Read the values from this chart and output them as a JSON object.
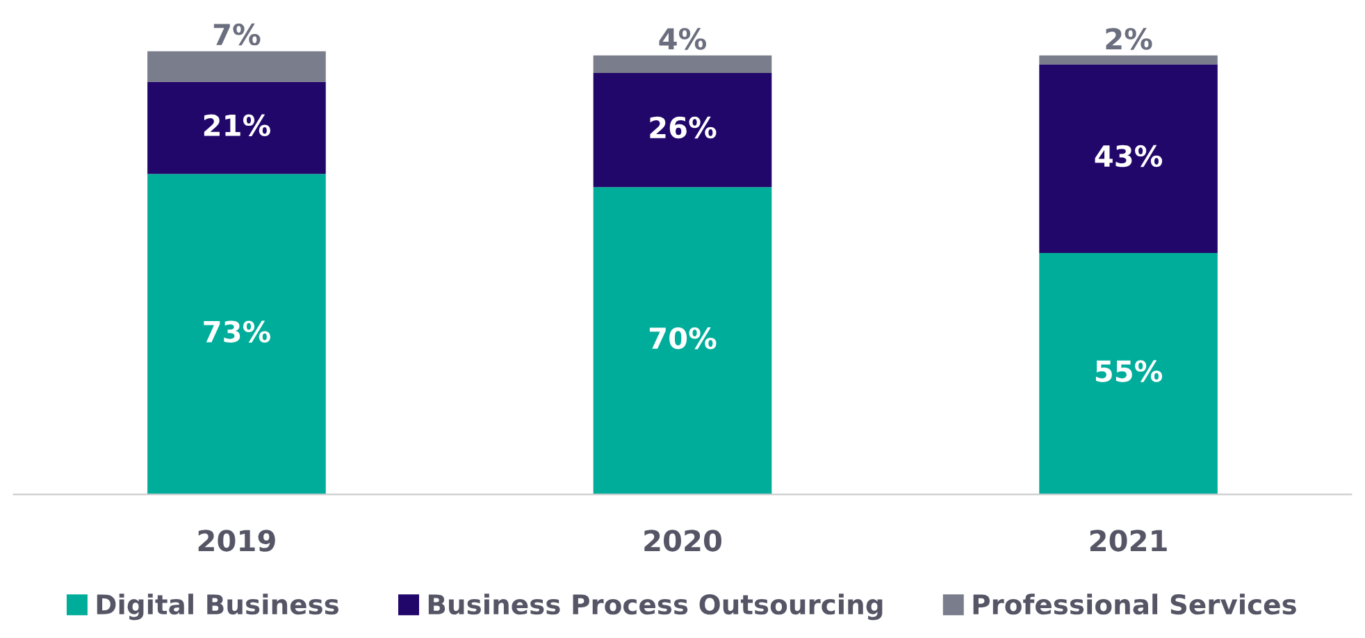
{
  "chart_data": {
    "type": "bar",
    "stacked": true,
    "categories": [
      "2019",
      "2020",
      "2021"
    ],
    "series": [
      {
        "name": "Digital Business",
        "color": "#00ad9a",
        "values": [
          73,
          70,
          55
        ],
        "value_labels": [
          "73%",
          "70%",
          "55%"
        ]
      },
      {
        "name": "Business Process Outsourcing",
        "color": "#22076b",
        "values": [
          21,
          26,
          43
        ],
        "value_labels": [
          "21%",
          "26%",
          "43%"
        ]
      },
      {
        "name": "Professional Services",
        "color": "#7a7d8c",
        "values": [
          7,
          4,
          2
        ],
        "value_labels": [
          "7%",
          "4%",
          "2%"
        ]
      }
    ],
    "legend": "bottom",
    "grid": false
  }
}
